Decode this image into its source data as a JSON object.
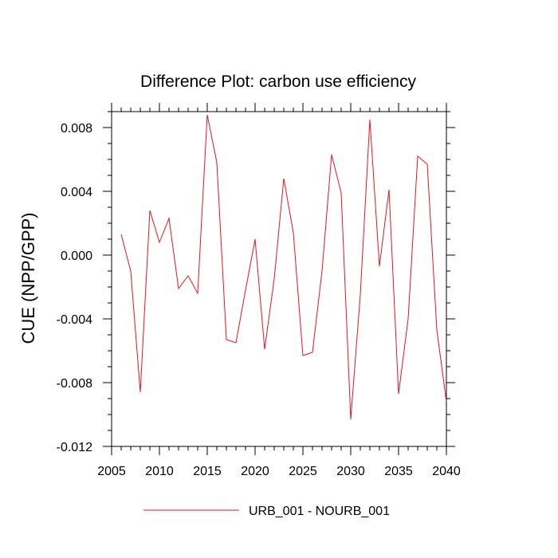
{
  "chart_data": {
    "type": "line",
    "title": "Difference Plot: carbon use efficiency",
    "xlabel": "",
    "ylabel": "CUE  (NPP/GPP)",
    "xlim": [
      2005,
      2040
    ],
    "ylim": [
      -0.012,
      0.009
    ],
    "x_ticks": [
      2005,
      2010,
      2015,
      2020,
      2025,
      2030,
      2035,
      2040
    ],
    "x_tick_labels": [
      "2005",
      "2010",
      "2015",
      "2020",
      "2025",
      "2030",
      "2035",
      "2040"
    ],
    "y_ticks": [
      -0.012,
      -0.008,
      -0.004,
      0.0,
      0.004,
      0.008
    ],
    "y_tick_labels": [
      "-0.012",
      "-0.008",
      "-0.004",
      "0.000",
      "0.004",
      "0.008"
    ],
    "x_minor_step": 1,
    "y_minor_step": 0.001,
    "grid": false,
    "legend_position": "bottom-center",
    "series": [
      {
        "name": "URB_001 - NOURB_001",
        "color": "#e8141e",
        "x": [
          2006,
          2007,
          2008,
          2009,
          2010,
          2011,
          2012,
          2013,
          2014,
          2015,
          2016,
          2017,
          2018,
          2019,
          2020,
          2021,
          2022,
          2023,
          2024,
          2025,
          2026,
          2027,
          2028,
          2029,
          2030,
          2031,
          2032,
          2033,
          2034,
          2035,
          2036,
          2037,
          2038,
          2039,
          2040
        ],
        "y": [
          0.0013,
          -0.001,
          -0.0086,
          0.0028,
          0.0008,
          0.0023,
          -0.0021,
          -0.0013,
          -0.0024,
          0.0088,
          0.0058,
          -0.0053,
          -0.0055,
          -0.0022,
          0.001,
          -0.0059,
          -0.0015,
          0.0048,
          0.0014,
          -0.0063,
          -0.0061,
          -0.001,
          0.0063,
          0.0039,
          -0.0103,
          -0.0025,
          0.0085,
          -0.0007,
          0.0041,
          -0.0087,
          -0.004,
          0.0062,
          0.0057,
          -0.0047,
          -0.0092
        ]
      }
    ]
  }
}
